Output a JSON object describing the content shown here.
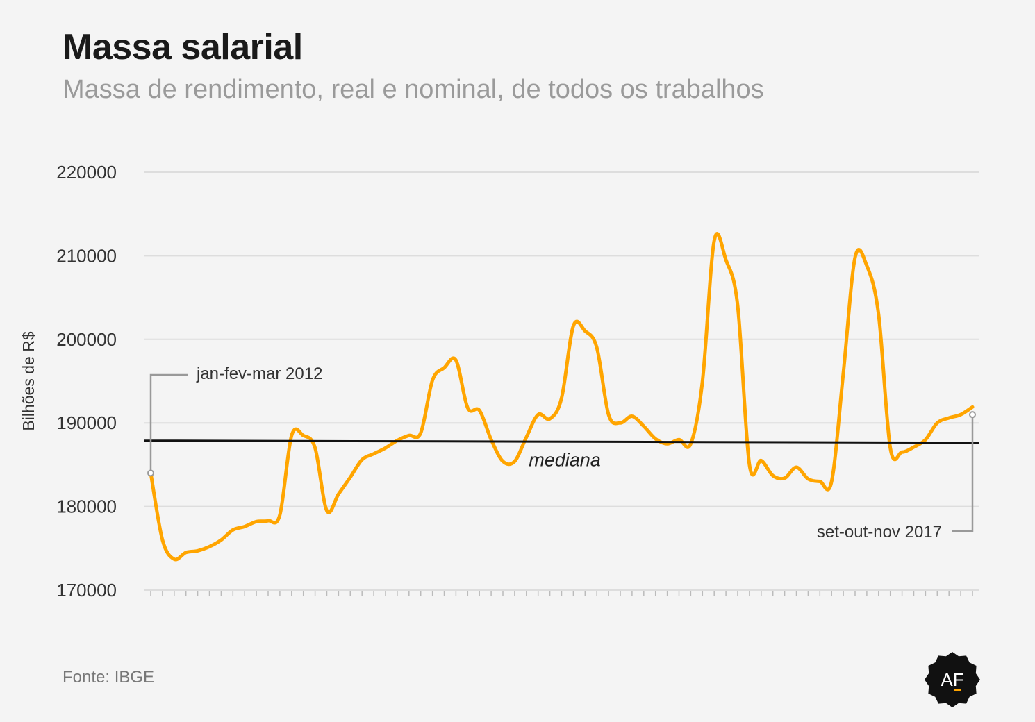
{
  "title": "Massa salarial",
  "subtitle": "Massa de rendimento, real e nominal, de todos os trabalhos",
  "source": "Fonte: IBGE",
  "logo_text": "AF",
  "colors": {
    "line": "#ffa500",
    "median": "#111111",
    "grid": "#dddddd",
    "axis_text": "#333333",
    "annotation": "#999999"
  },
  "chart_data": {
    "type": "line",
    "title": "Massa salarial",
    "subtitle": "Massa de rendimento, real e nominal, de todos os trabalhos",
    "xlabel": "",
    "ylabel": "Bilhões de R$",
    "ylim": [
      170000,
      220000
    ],
    "yticks": [
      220000,
      210000,
      200000,
      190000,
      180000,
      170000
    ],
    "grid": true,
    "period_start": "jan-fev-mar 2012",
    "period_end": "set-out-nov 2017",
    "series": [
      {
        "values": [
          184000,
          176000,
          173700,
          174500,
          174700,
          175200,
          176000,
          177200,
          177600,
          178200,
          178300,
          179000,
          188500,
          188500,
          187000,
          179500,
          181500,
          183500,
          185600,
          186300,
          187000,
          187900,
          188500,
          188800,
          195100,
          196600,
          197500,
          191800,
          191500,
          188000,
          185400,
          185400,
          188300,
          191000,
          190500,
          193000,
          201600,
          201000,
          199000,
          191000,
          190000,
          190800,
          189600,
          188100,
          187500,
          188000,
          187500,
          195000,
          211800,
          209500,
          204000,
          185000,
          185500,
          183700,
          183400,
          184700,
          183300,
          183000,
          183000,
          196000,
          209800,
          208800,
          203000,
          187000,
          186500,
          187100,
          188000,
          190000,
          190600,
          191000,
          191900
        ]
      }
    ],
    "median": {
      "value": 187800,
      "label": "mediana"
    },
    "annotations": [
      {
        "label": "jan-fev-mar 2012"
      },
      {
        "label": "set-out-nov 2017"
      }
    ]
  }
}
